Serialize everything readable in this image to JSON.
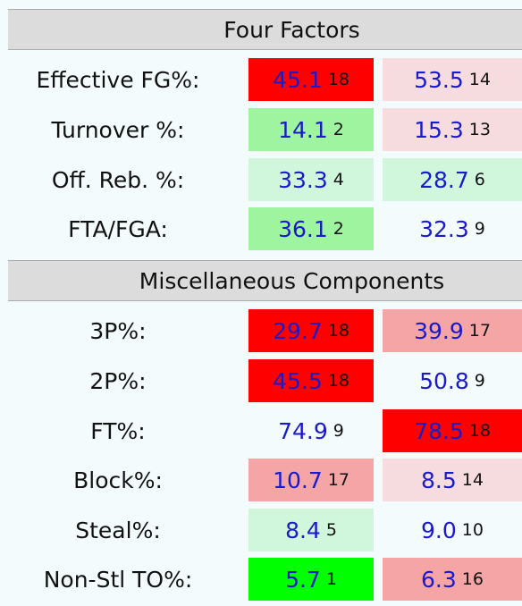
{
  "sections": [
    {
      "title": "Four Factors",
      "rows": [
        {
          "label": "Effective FG%:",
          "off": {
            "value": "45.1",
            "rank": "18",
            "color": "#ff0000"
          },
          "def": {
            "value": "53.5",
            "rank": "14",
            "color": "#f6dcdf"
          }
        },
        {
          "label": "Turnover %:",
          "off": {
            "value": "14.1",
            "rank": "2",
            "color": "#9ff59f"
          },
          "def": {
            "value": "15.3",
            "rank": "13",
            "color": "#f6dcdf"
          }
        },
        {
          "label": "Off. Reb. %:",
          "off": {
            "value": "33.3",
            "rank": "4",
            "color": "#d0f7dc"
          },
          "def": {
            "value": "28.7",
            "rank": "6",
            "color": "#d0f7dc"
          }
        },
        {
          "label": "FTA/FGA:",
          "off": {
            "value": "36.1",
            "rank": "2",
            "color": "#9ff59f"
          },
          "def": {
            "value": "32.3",
            "rank": "9",
            "color": "#f4fbfd"
          }
        }
      ]
    },
    {
      "title": "Miscellaneous Components",
      "rows": [
        {
          "label": "3P%:",
          "off": {
            "value": "29.7",
            "rank": "18",
            "color": "#ff0000"
          },
          "def": {
            "value": "39.9",
            "rank": "17",
            "color": "#f5a5a5"
          }
        },
        {
          "label": "2P%:",
          "off": {
            "value": "45.5",
            "rank": "18",
            "color": "#ff0000"
          },
          "def": {
            "value": "50.8",
            "rank": "9",
            "color": "#f4fbfd"
          }
        },
        {
          "label": "FT%:",
          "off": {
            "value": "74.9",
            "rank": "9",
            "color": "#f4fbfd"
          },
          "def": {
            "value": "78.5",
            "rank": "18",
            "color": "#ff0000"
          }
        },
        {
          "label": "Block%:",
          "off": {
            "value": "10.7",
            "rank": "17",
            "color": "#f5a5a5"
          },
          "def": {
            "value": "8.5",
            "rank": "14",
            "color": "#f6dcdf"
          }
        },
        {
          "label": "Steal%:",
          "off": {
            "value": "8.4",
            "rank": "5",
            "color": "#d0f7dc"
          },
          "def": {
            "value": "9.0",
            "rank": "10",
            "color": "#f4fbfd"
          }
        },
        {
          "label": "Non-Stl TO%:",
          "off": {
            "value": "5.7",
            "rank": "1",
            "color": "#00ff00"
          },
          "def": {
            "value": "6.3",
            "rank": "16",
            "color": "#f5a5a5"
          }
        }
      ]
    }
  ]
}
